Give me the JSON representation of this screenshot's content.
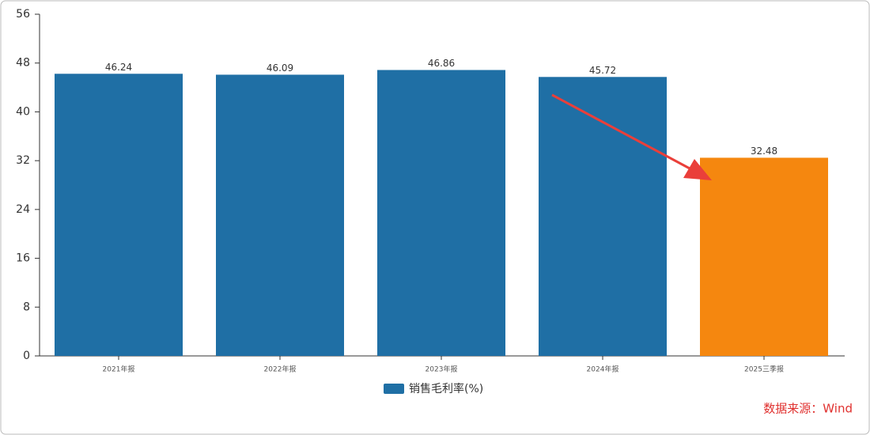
{
  "chart_data": {
    "type": "bar",
    "categories": [
      "2021年报",
      "2022年报",
      "2023年报",
      "2024年报",
      "2025三季报"
    ],
    "series": [
      {
        "name": "销售毛利率(%)",
        "color": "#1f6fa5",
        "values": [
          46.24,
          46.09,
          46.86,
          45.72,
          32.48
        ]
      }
    ],
    "point_colors": [
      "#1f6fa5",
      "#1f6fa5",
      "#1f6fa5",
      "#1f6fa5",
      "#f5870f"
    ],
    "ylim": [
      0,
      56
    ],
    "yticks": [
      0,
      8,
      16,
      24,
      32,
      40,
      48,
      56
    ],
    "legend": "bottom",
    "source": "数据来源：Wind"
  }
}
